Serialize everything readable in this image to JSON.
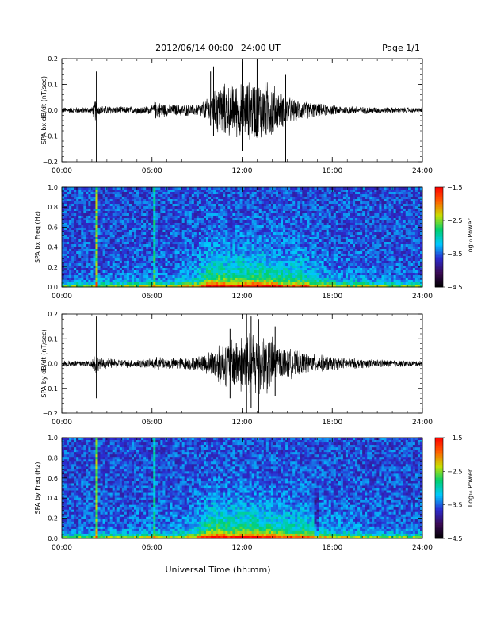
{
  "header": {
    "title": "2012/06/14  00:00−24:00 UT",
    "page": "Page 1/1"
  },
  "footer": {
    "xlabel": "Universal Time (hh:mm)"
  },
  "colors": {
    "trace": "#000000",
    "colormap": [
      "#000000",
      "#3a0a55",
      "#2b2bd0",
      "#00c8ff",
      "#00d070",
      "#c8e000",
      "#ff6000",
      "#ff0000"
    ]
  },
  "chart_data": [
    {
      "type": "line",
      "ylabel": "SPA bx dB/dt (nT/sec)",
      "xlim": [
        0,
        24
      ],
      "ylim": [
        -0.2,
        0.2
      ],
      "xticks": [
        "00:00",
        "06:00",
        "12:00",
        "18:00",
        "24:00"
      ],
      "yticks": [
        "0.2",
        "0.1",
        "0.0",
        "−0.1",
        "−0.2"
      ],
      "envelope_x": [
        0,
        2,
        2.2,
        2.5,
        4,
        6,
        6.2,
        7,
        9,
        10,
        10.5,
        11,
        12,
        13,
        14,
        14.5,
        15,
        16,
        17,
        18,
        20,
        22,
        24
      ],
      "envelope_amp": [
        0.012,
        0.014,
        0.05,
        0.02,
        0.015,
        0.018,
        0.04,
        0.025,
        0.025,
        0.06,
        0.12,
        0.11,
        0.12,
        0.13,
        0.12,
        0.08,
        0.06,
        0.04,
        0.03,
        0.02,
        0.015,
        0.012,
        0.01
      ],
      "spikes": [
        {
          "x": 2.3,
          "min": -0.2,
          "max": 0.15
        },
        {
          "x": 9.9,
          "min": -0.06,
          "max": 0.15
        },
        {
          "x": 10.1,
          "min": -0.1,
          "max": 0.17
        },
        {
          "x": 12.0,
          "min": -0.16,
          "max": 0.19
        },
        {
          "x": 13.0,
          "min": -0.1,
          "max": 0.2
        },
        {
          "x": 14.9,
          "min": -0.2,
          "max": 0.14
        }
      ]
    },
    {
      "type": "heatmap",
      "ylabel": "SPA bx Freq (Hz)",
      "xlim": [
        0,
        24
      ],
      "ylim": [
        0,
        1.0
      ],
      "xticks": [
        "00:00",
        "06:00",
        "12:00",
        "18:00",
        "24:00"
      ],
      "yticks": [
        "1.0",
        "0.8",
        "0.6",
        "0.4",
        "0.2",
        "0.0"
      ],
      "colorbar": {
        "label": "Log₁₀ Power",
        "range": [
          -4.5,
          -1.5
        ],
        "ticks": [
          "−1.5",
          "−2.5",
          "−3.5",
          "−4.5"
        ]
      }
    },
    {
      "type": "line",
      "ylabel": "SPA by dB/dt (nT/sec)",
      "xlim": [
        0,
        24
      ],
      "ylim": [
        -0.2,
        0.2
      ],
      "xticks": [
        "00:00",
        "06:00",
        "12:00",
        "18:00",
        "24:00"
      ],
      "yticks": [
        "0.2",
        "0.1",
        "0.0",
        "−0.1",
        "−0.2"
      ],
      "envelope_x": [
        0,
        2,
        2.2,
        2.5,
        4,
        6,
        6.2,
        7,
        9,
        10,
        10.5,
        11,
        12,
        13,
        14,
        14.5,
        15,
        16,
        17,
        18,
        20,
        22,
        24
      ],
      "envelope_amp": [
        0.014,
        0.015,
        0.06,
        0.025,
        0.018,
        0.02,
        0.03,
        0.025,
        0.03,
        0.06,
        0.1,
        0.1,
        0.13,
        0.16,
        0.12,
        0.08,
        0.07,
        0.05,
        0.04,
        0.03,
        0.02,
        0.015,
        0.012
      ],
      "spikes": [
        {
          "x": 2.3,
          "min": -0.14,
          "max": 0.19
        },
        {
          "x": 11.2,
          "min": -0.14,
          "max": 0.14
        },
        {
          "x": 12.3,
          "min": -0.2,
          "max": 0.2
        },
        {
          "x": 12.6,
          "min": -0.18,
          "max": 0.19
        },
        {
          "x": 13.1,
          "min": -0.2,
          "max": 0.18
        },
        {
          "x": 14.2,
          "min": -0.13,
          "max": 0.15
        }
      ]
    },
    {
      "type": "heatmap",
      "ylabel": "SPA by Freq (Hz)",
      "xlim": [
        0,
        24
      ],
      "ylim": [
        0,
        1.0
      ],
      "xticks": [
        "00:00",
        "06:00",
        "12:00",
        "18:00",
        "24:00"
      ],
      "yticks": [
        "1.0",
        "0.8",
        "0.6",
        "0.4",
        "0.2",
        "0.0"
      ],
      "colorbar": {
        "label": "Log₁₀ Power",
        "range": [
          -4.5,
          -1.5
        ],
        "ticks": [
          "−1.5",
          "−2.5",
          "−3.5",
          "−4.5"
        ]
      }
    }
  ]
}
